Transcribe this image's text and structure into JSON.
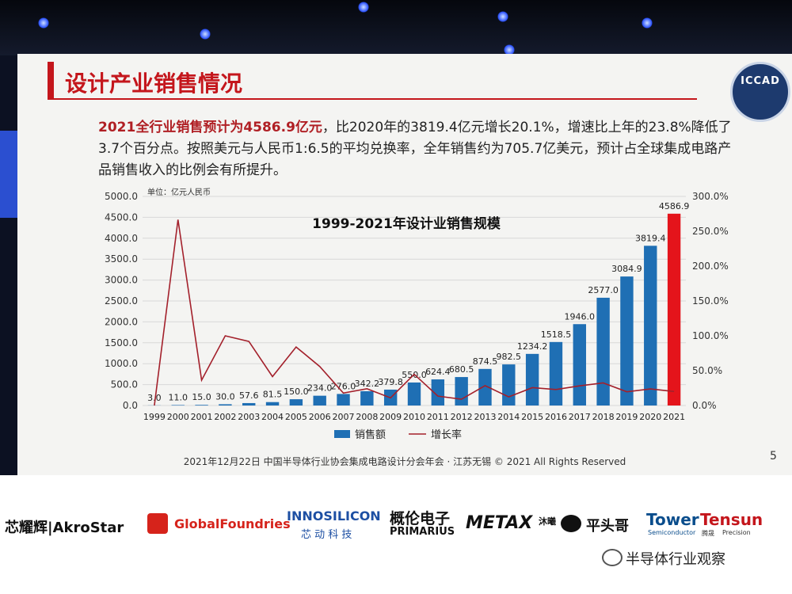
{
  "slide": {
    "title": "设计产业销售情况",
    "logo_text": "ICCAD",
    "desc_highlight": "2021全行业销售预计为4586.9亿元",
    "desc_rest": "，比2020年的3819.4亿元增长20.1%，增速比上年的23.8%降低了3.7个百分点。按照美元与人民币1:6.5的平均兑换率，全年销售约为705.7亿美元，预计占全球集成电路产品销售收入的比例会有所提升。",
    "footer": "2021年12月22日  中国半导体行业协会集成电路设计分会年会 · 江苏无锡 © 2021 All Rights Reserved",
    "page_number": "5"
  },
  "partners": [
    "芯耀辉|AkroStar",
    "GlobalFoundries",
    "INNOSILICON",
    "芯 动 科 技",
    "概伦电子",
    "PRIMARIUS",
    "METAX",
    "沐曦",
    "平头哥",
    "Tower",
    "Semiconductor",
    "Tensun",
    "腾晟",
    "Precision"
  ],
  "watermark": "半导体行业观察",
  "colors": {
    "accent": "#c4161c",
    "bar": "#1f6fb4",
    "bar_last": "#e4141b",
    "line": "#a3202b"
  },
  "chart_data": {
    "type": "bar",
    "title": "1999-2021年设计业销售规模",
    "unit_label": "单位：亿元人民币",
    "categories": [
      "1999",
      "2000",
      "2001",
      "2002",
      "2003",
      "2004",
      "2005",
      "2006",
      "2007",
      "2008",
      "2009",
      "2010",
      "2011",
      "2012",
      "2013",
      "2014",
      "2015",
      "2016",
      "2017",
      "2018",
      "2019",
      "2020",
      "2021"
    ],
    "value_labels": [
      "3.0",
      "11.0",
      "15.0",
      "30.0",
      "57.6",
      "81.5",
      "150.0",
      "234.0",
      "276.0",
      "342.2",
      "379.8",
      "550.0",
      "624.4",
      "680.5",
      "874.5",
      "982.5",
      "1234.2",
      "1518.5",
      "1946.0",
      "2577.0",
      "3084.9",
      "3819.4",
      "4586.9"
    ],
    "series": [
      {
        "name": "销售额",
        "type": "bar",
        "axis": "left",
        "values": [
          3.0,
          11.0,
          15.0,
          30.0,
          57.6,
          81.5,
          150.0,
          234.0,
          276.0,
          342.2,
          379.8,
          550.0,
          624.4,
          680.5,
          874.5,
          982.5,
          1234.2,
          1518.5,
          1946.0,
          2577.0,
          3084.9,
          3819.4,
          4586.9
        ]
      },
      {
        "name": "增长率",
        "type": "line",
        "axis": "right",
        "values": [
          0,
          266.7,
          36.4,
          100,
          92,
          41.5,
          84,
          56,
          17.9,
          24,
          11,
          44.8,
          13.5,
          9,
          28.5,
          12.4,
          25.6,
          23,
          28.2,
          32.4,
          19.7,
          23.8,
          20.1
        ]
      }
    ],
    "y_left": {
      "min": 0,
      "max": 5000,
      "ticks": [
        "0.0",
        "500.0",
        "1000.0",
        "1500.0",
        "2000.0",
        "2500.0",
        "3000.0",
        "3500.0",
        "4000.0",
        "4500.0",
        "5000.0"
      ]
    },
    "y_right": {
      "min": 0,
      "max": 300,
      "ticks": [
        "0.0%",
        "50.0%",
        "100.0%",
        "150.0%",
        "200.0%",
        "250.0%",
        "300.0%"
      ]
    },
    "grid": true,
    "legend_position": "bottom"
  }
}
